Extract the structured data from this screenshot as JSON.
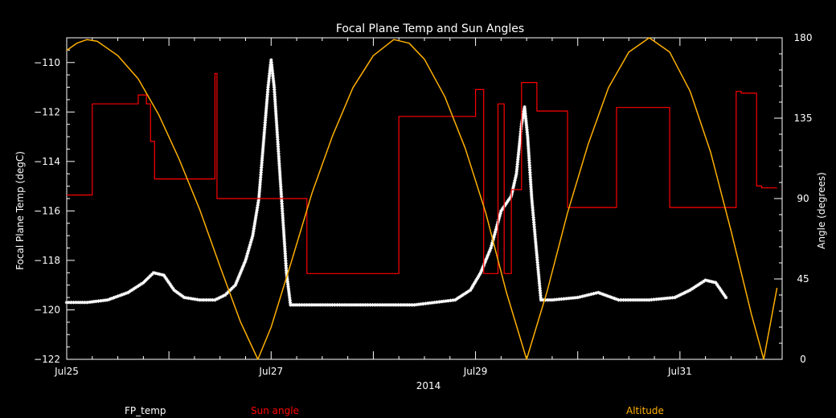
{
  "chart_data": {
    "type": "line",
    "title": "Focal Plane Temp and Sun Angles",
    "xlabel": "2014",
    "ylabel_left": "Focal Plane Temp (degC)",
    "ylabel_right": "Angle (degrees)",
    "xlim": [
      25.0,
      32.0
    ],
    "ylim_left": [
      -122,
      -109
    ],
    "ylim_right": [
      0,
      180
    ],
    "x_ticks": [
      {
        "value": 25,
        "label": "Jul25"
      },
      {
        "value": 27,
        "label": "Jul27"
      },
      {
        "value": 29,
        "label": "Jul29"
      },
      {
        "value": 31,
        "label": "Jul31"
      }
    ],
    "y_ticks_left": [
      {
        "value": -110,
        "label": "−110"
      },
      {
        "value": -112,
        "label": "−112"
      },
      {
        "value": -114,
        "label": "−114"
      },
      {
        "value": -116,
        "label": "−116"
      },
      {
        "value": -118,
        "label": "−118"
      },
      {
        "value": -120,
        "label": "−120"
      },
      {
        "value": -122,
        "label": "−122"
      }
    ],
    "y_ticks_right": [
      {
        "value": 0,
        "label": "0"
      },
      {
        "value": 45,
        "label": "45"
      },
      {
        "value": 90,
        "label": "90"
      },
      {
        "value": 135,
        "label": "135"
      },
      {
        "value": 180,
        "label": "180"
      }
    ],
    "legend": [
      "FP_temp",
      "Sun angle",
      "Altitude"
    ],
    "series": [
      {
        "name": "FP_temp",
        "axis": "left",
        "style": "asterisk",
        "color": "#ffffff",
        "points": [
          [
            25.0,
            -119.7
          ],
          [
            25.2,
            -119.7
          ],
          [
            25.4,
            -119.6
          ],
          [
            25.6,
            -119.3
          ],
          [
            25.75,
            -118.9
          ],
          [
            25.85,
            -118.5
          ],
          [
            25.95,
            -118.6
          ],
          [
            26.05,
            -119.2
          ],
          [
            26.15,
            -119.5
          ],
          [
            26.3,
            -119.6
          ],
          [
            26.45,
            -119.6
          ],
          [
            26.55,
            -119.4
          ],
          [
            26.65,
            -119.0
          ],
          [
            26.75,
            -118.0
          ],
          [
            26.82,
            -117.0
          ],
          [
            26.88,
            -115.5
          ],
          [
            26.93,
            -113.0
          ],
          [
            26.97,
            -111.0
          ],
          [
            27.0,
            -109.9
          ],
          [
            27.03,
            -111.0
          ],
          [
            27.07,
            -113.5
          ],
          [
            27.11,
            -116.0
          ],
          [
            27.15,
            -118.5
          ],
          [
            27.19,
            -119.8
          ],
          [
            27.3,
            -119.8
          ],
          [
            27.6,
            -119.8
          ],
          [
            27.9,
            -119.8
          ],
          [
            28.2,
            -119.8
          ],
          [
            28.4,
            -119.8
          ],
          [
            28.6,
            -119.7
          ],
          [
            28.8,
            -119.6
          ],
          [
            28.95,
            -119.2
          ],
          [
            29.05,
            -118.5
          ],
          [
            29.15,
            -117.5
          ],
          [
            29.25,
            -116.0
          ],
          [
            29.35,
            -115.4
          ],
          [
            29.4,
            -114.5
          ],
          [
            29.45,
            -112.5
          ],
          [
            29.48,
            -111.8
          ],
          [
            29.51,
            -113.0
          ],
          [
            29.55,
            -115.5
          ],
          [
            29.6,
            -117.8
          ],
          [
            29.64,
            -119.6
          ],
          [
            29.75,
            -119.6
          ],
          [
            30.0,
            -119.5
          ],
          [
            30.2,
            -119.3
          ],
          [
            30.4,
            -119.6
          ],
          [
            30.7,
            -119.6
          ],
          [
            30.95,
            -119.5
          ],
          [
            31.1,
            -119.2
          ],
          [
            31.25,
            -118.8
          ],
          [
            31.35,
            -118.9
          ],
          [
            31.45,
            -119.5
          ]
        ]
      },
      {
        "name": "Sun angle",
        "axis": "right",
        "style": "step",
        "color": "#ff0000",
        "points": [
          [
            25.0,
            92
          ],
          [
            25.25,
            92
          ],
          [
            25.25,
            143
          ],
          [
            25.7,
            143
          ],
          [
            25.7,
            148
          ],
          [
            25.78,
            148
          ],
          [
            25.78,
            143
          ],
          [
            25.82,
            143
          ],
          [
            25.82,
            122
          ],
          [
            25.86,
            122
          ],
          [
            25.86,
            101
          ],
          [
            26.45,
            101
          ],
          [
            26.45,
            160
          ],
          [
            26.47,
            160
          ],
          [
            26.47,
            90
          ],
          [
            27.35,
            90
          ],
          [
            27.35,
            48
          ],
          [
            28.25,
            48
          ],
          [
            28.25,
            136
          ],
          [
            29.0,
            136
          ],
          [
            29.0,
            151
          ],
          [
            29.08,
            151
          ],
          [
            29.08,
            48
          ],
          [
            29.22,
            48
          ],
          [
            29.22,
            143
          ],
          [
            29.28,
            143
          ],
          [
            29.28,
            48
          ],
          [
            29.35,
            48
          ],
          [
            29.35,
            95
          ],
          [
            29.45,
            95
          ],
          [
            29.45,
            155
          ],
          [
            29.6,
            155
          ],
          [
            29.6,
            139
          ],
          [
            29.9,
            139
          ],
          [
            29.9,
            85
          ],
          [
            30.38,
            85
          ],
          [
            30.38,
            141
          ],
          [
            30.9,
            141
          ],
          [
            30.9,
            85
          ],
          [
            31.55,
            85
          ],
          [
            31.55,
            150
          ],
          [
            31.6,
            150
          ],
          [
            31.6,
            149
          ],
          [
            31.75,
            149
          ],
          [
            31.75,
            97
          ],
          [
            31.8,
            97
          ],
          [
            31.8,
            96
          ],
          [
            31.95,
            96
          ]
        ]
      },
      {
        "name": "Altitude",
        "axis": "right",
        "style": "line",
        "color": "#ffb000",
        "points": [
          [
            25.0,
            173
          ],
          [
            25.1,
            177
          ],
          [
            25.2,
            179
          ],
          [
            25.3,
            178
          ],
          [
            25.5,
            170
          ],
          [
            25.7,
            157
          ],
          [
            25.9,
            137
          ],
          [
            26.1,
            112
          ],
          [
            26.3,
            84
          ],
          [
            26.5,
            52
          ],
          [
            26.7,
            21
          ],
          [
            26.87,
            0
          ],
          [
            27.0,
            18
          ],
          [
            27.2,
            55
          ],
          [
            27.4,
            93
          ],
          [
            27.6,
            125
          ],
          [
            27.8,
            152
          ],
          [
            28.0,
            170
          ],
          [
            28.2,
            179
          ],
          [
            28.35,
            177
          ],
          [
            28.5,
            168
          ],
          [
            28.7,
            147
          ],
          [
            28.9,
            118
          ],
          [
            29.1,
            82
          ],
          [
            29.3,
            38
          ],
          [
            29.5,
            0
          ],
          [
            29.7,
            38
          ],
          [
            29.9,
            82
          ],
          [
            30.1,
            120
          ],
          [
            30.3,
            152
          ],
          [
            30.5,
            172
          ],
          [
            30.7,
            180
          ],
          [
            30.9,
            172
          ],
          [
            31.1,
            150
          ],
          [
            31.3,
            116
          ],
          [
            31.5,
            72
          ],
          [
            31.7,
            25
          ],
          [
            31.82,
            0
          ],
          [
            31.95,
            40
          ]
        ]
      }
    ]
  }
}
